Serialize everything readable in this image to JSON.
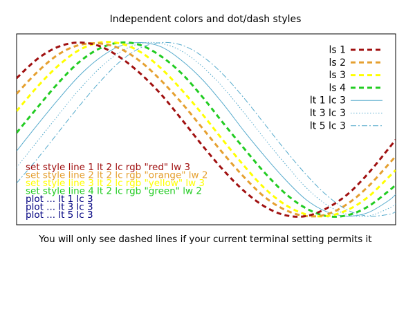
{
  "chart_data": {
    "type": "line",
    "title": "Independent colors and dot/dash styles",
    "xlabel": "",
    "ylabel": "",
    "xlim": [
      -2.2,
      3.3
    ],
    "ylim": [
      -1.1,
      1.1
    ],
    "grid": false,
    "legend_position": "top-right",
    "series": [
      {
        "name": "ls 1",
        "color": "#a01010",
        "style": "dash-thick",
        "x": [
          -2.2,
          -1.9,
          -1.6,
          -1.3,
          -1.0,
          -0.7,
          -0.4,
          -0.1,
          0.2,
          0.5,
          0.8,
          1.1,
          1.4,
          1.7,
          2.0,
          2.3,
          2.6,
          2.9,
          3.2,
          3.3
        ],
        "y": [
          0.59,
          0.81,
          0.95,
          1.0,
          0.96,
          0.83,
          0.64,
          0.4,
          0.11,
          -0.19,
          -0.47,
          -0.71,
          -0.89,
          -0.99,
          -1.0,
          -0.91,
          -0.75,
          -0.51,
          -0.22,
          -0.12
        ]
      },
      {
        "name": "ls 2",
        "color": "#e5a030",
        "style": "dash-thick",
        "x": [
          -2.2,
          -1.9,
          -1.6,
          -1.3,
          -1.0,
          -0.7,
          -0.4,
          -0.1,
          0.2,
          0.5,
          0.8,
          1.1,
          1.4,
          1.7,
          2.0,
          2.3,
          2.6,
          2.9,
          3.2,
          3.3
        ],
        "y": [
          0.41,
          0.66,
          0.86,
          0.97,
          0.99,
          0.93,
          0.78,
          0.56,
          0.3,
          0.01,
          -0.28,
          -0.55,
          -0.78,
          -0.93,
          -1.0,
          -0.98,
          -0.86,
          -0.66,
          -0.4,
          -0.31
        ]
      },
      {
        "name": "ls 3",
        "color": "#ffff00",
        "style": "dash-thick",
        "x": [
          -2.2,
          -1.9,
          -1.6,
          -1.3,
          -1.0,
          -0.7,
          -0.4,
          -0.1,
          0.2,
          0.5,
          0.8,
          1.1,
          1.4,
          1.7,
          2.0,
          2.3,
          2.6,
          2.9,
          3.2,
          3.3
        ],
        "y": [
          0.21,
          0.49,
          0.73,
          0.91,
          1.0,
          0.99,
          0.89,
          0.7,
          0.45,
          0.17,
          -0.13,
          -0.42,
          -0.68,
          -0.87,
          -0.98,
          -1.0,
          -0.93,
          -0.78,
          -0.55,
          -0.47
        ]
      },
      {
        "name": "ls 4",
        "color": "#22cc22",
        "style": "dash-thick",
        "x": [
          -2.2,
          -1.9,
          -1.6,
          -1.3,
          -1.0,
          -0.7,
          -0.4,
          -0.1,
          0.2,
          0.5,
          0.8,
          1.1,
          1.4,
          1.7,
          2.0,
          2.3,
          2.6,
          2.9,
          3.2,
          3.3
        ],
        "y": [
          -0.04,
          0.25,
          0.53,
          0.77,
          0.93,
          1.0,
          0.97,
          0.84,
          0.64,
          0.37,
          0.07,
          -0.22,
          -0.5,
          -0.74,
          -0.91,
          -1.0,
          -0.99,
          -0.89,
          -0.71,
          -0.64
        ]
      },
      {
        "name": "lt 1 lc 3",
        "color": "#55aacc",
        "style": "solid",
        "x": [
          -2.2,
          -1.9,
          -1.6,
          -1.3,
          -1.0,
          -0.7,
          -0.4,
          -0.1,
          0.2,
          0.5,
          0.8,
          1.1,
          1.4,
          1.7,
          2.0,
          2.3,
          2.6,
          2.9,
          3.2,
          3.3
        ],
        "y": [
          -0.25,
          0.05,
          0.34,
          0.61,
          0.82,
          0.96,
          1.0,
          0.95,
          0.79,
          0.57,
          0.29,
          -0.02,
          -0.31,
          -0.58,
          -0.81,
          -0.95,
          -1.0,
          -0.96,
          -0.82,
          -0.75
        ]
      },
      {
        "name": "lt 3 lc 3",
        "color": "#55aacc",
        "style": "dotted",
        "x": [
          -2.2,
          -1.9,
          -1.6,
          -1.3,
          -1.0,
          -0.7,
          -0.4,
          -0.1,
          0.2,
          0.5,
          0.8,
          1.1,
          1.4,
          1.7,
          2.0,
          2.3,
          2.6,
          2.9,
          3.2,
          3.3
        ],
        "y": [
          -0.44,
          -0.14,
          0.16,
          0.45,
          0.7,
          0.89,
          0.99,
          0.99,
          0.9,
          0.72,
          0.48,
          0.19,
          -0.11,
          -0.4,
          -0.67,
          -0.87,
          -0.98,
          -1.0,
          -0.91,
          -0.86
        ]
      },
      {
        "name": "lt 5 lc 3",
        "color": "#55aacc",
        "style": "dash-dot",
        "x": [
          -2.2,
          -1.9,
          -1.6,
          -1.3,
          -1.0,
          -0.7,
          -0.4,
          -0.1,
          0.2,
          0.5,
          0.8,
          1.1,
          1.4,
          1.7,
          2.0,
          2.3,
          2.6,
          2.9,
          3.2,
          3.3
        ],
        "y": [
          -0.62,
          -0.34,
          -0.04,
          0.26,
          0.54,
          0.78,
          0.94,
          1.0,
          0.97,
          0.84,
          0.63,
          0.36,
          0.06,
          -0.24,
          -0.52,
          -0.76,
          -0.93,
          -1.0,
          -0.98,
          -0.95
        ]
      }
    ],
    "annotations": [
      {
        "text": "set style line 1 lt 2 lc rgb \"red\" lw 3",
        "color": "#a01010"
      },
      {
        "text": "set style line 2 lt 2 lc rgb \"orange\" lw 2",
        "color": "#e5a030"
      },
      {
        "text": "set style line 3 lt 2 lc rgb \"yellow\" lw 3",
        "color": "#ffff00"
      },
      {
        "text": "set style line 4 lt 2 lc rgb \"green\" lw 2",
        "color": "#22cc22"
      },
      {
        "text": "plot ... lt 1 lc 3",
        "color": "#000080"
      },
      {
        "text": "plot ... lt 3 lc 3",
        "color": "#000080"
      },
      {
        "text": "plot ... lt 5 lc 3",
        "color": "#000080"
      }
    ],
    "caption": "You will only see dashed lines if your current terminal setting permits it"
  }
}
